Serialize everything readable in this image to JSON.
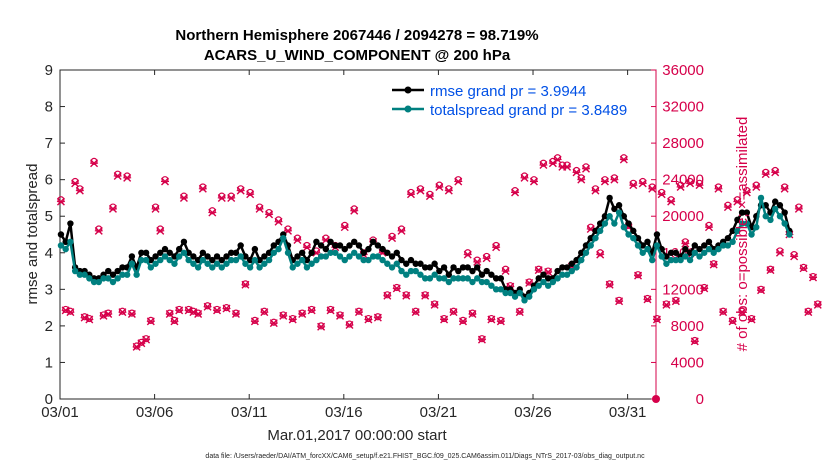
{
  "figure": {
    "title_line1": "Northern Hemisphere 2067446 / 2094278 = 98.719%",
    "title_line2": "ACARS_U_WIND_COMPONENT @ 200 hPa",
    "footnote": "data file: /Users/raeder/DAI/ATM_forcXX/CAM6_setup/f.e21.FHIST_BGC.f09_025.CAM6assim.011/Diags_NTrS_2017-03/obs_diag_output.nc"
  },
  "colors": {
    "rmse": "#000000",
    "spread": "#008080",
    "obs": "#d6004a",
    "legend_text": "#0050e6"
  },
  "chart_data": {
    "type": "line",
    "title": "Northern Hemisphere 2067446 / 2094278 = 98.719% — ACARS_U_WIND_COMPONENT @ 200 hPa",
    "xlabel": "Mar.01,2017 00:00:00 start",
    "ylabel": "rmse and totalspread",
    "y2label": "# of obs: o=possible; ×=assimilated",
    "xlim": [
      0,
      31.5
    ],
    "ylim": [
      0,
      9
    ],
    "y2lim": [
      0,
      36000
    ],
    "xticks": [
      0,
      5,
      10,
      15,
      20,
      25,
      30
    ],
    "xticklabels": [
      "03/01",
      "03/06",
      "03/11",
      "03/16",
      "03/21",
      "03/26",
      "03/31"
    ],
    "yticks": [
      0,
      1,
      2,
      3,
      4,
      5,
      6,
      7,
      8,
      9
    ],
    "y2ticks": [
      0,
      4000,
      8000,
      12000,
      16000,
      20000,
      24000,
      28000,
      32000,
      36000
    ],
    "legend": [
      {
        "name": "rmse grand pr = 3.9944",
        "key": "rmse"
      },
      {
        "name": "totalspread grand pr = 3.8489",
        "key": "spread"
      }
    ],
    "legend_position": "top-right",
    "time_step_days": 0.25,
    "series": [
      {
        "name": "rmse",
        "key": "rmse",
        "values": [
          4.5,
          4.3,
          4.8,
          3.6,
          3.5,
          3.5,
          3.4,
          3.3,
          3.3,
          3.4,
          3.5,
          3.4,
          3.5,
          3.6,
          3.6,
          3.9,
          3.6,
          4.0,
          4.0,
          3.8,
          3.9,
          4.0,
          4.1,
          4.0,
          3.9,
          4.1,
          4.3,
          4.0,
          3.9,
          3.8,
          4.0,
          3.9,
          3.8,
          3.9,
          3.8,
          3.9,
          4.0,
          4.0,
          4.2,
          3.9,
          3.8,
          4.1,
          3.8,
          3.9,
          4.0,
          4.2,
          4.3,
          4.5,
          4.2,
          3.8,
          3.9,
          4.0,
          3.8,
          4.0,
          4.3,
          4.2,
          4.1,
          4.3,
          4.2,
          4.2,
          4.1,
          4.2,
          4.3,
          4.2,
          4.0,
          4.1,
          4.3,
          4.2,
          4.1,
          4.0,
          3.9,
          4.0,
          3.8,
          3.7,
          3.8,
          3.7,
          3.7,
          3.6,
          3.6,
          3.7,
          3.5,
          3.6,
          3.4,
          3.6,
          3.5,
          3.6,
          3.6,
          3.5,
          3.6,
          3.4,
          3.5,
          3.4,
          3.3,
          3.3,
          3.0,
          3.0,
          2.9,
          3.0,
          2.8,
          2.9,
          3.1,
          3.3,
          3.4,
          3.3,
          3.3,
          3.5,
          3.6,
          3.6,
          3.7,
          3.8,
          4.0,
          4.2,
          4.4,
          4.6,
          4.8,
          5.0,
          5.5,
          5.2,
          5.3,
          5.0,
          4.8,
          4.6,
          4.4,
          4.2,
          4.3,
          4.0,
          4.5,
          4.1,
          3.9,
          4.0,
          4.0,
          3.9,
          4.1,
          4.0,
          4.2,
          4.1,
          4.2,
          4.3,
          4.1,
          4.2,
          4.3,
          4.4,
          4.6,
          4.9,
          5.1,
          5.1,
          4.7,
          5.0,
          5.3,
          5.3,
          5.1,
          5.4,
          5.3,
          5.1,
          4.6
        ]
      },
      {
        "name": "totalspread",
        "key": "spread",
        "values": [
          4.2,
          4.1,
          4.3,
          3.5,
          3.4,
          3.4,
          3.3,
          3.2,
          3.2,
          3.3,
          3.3,
          3.2,
          3.3,
          3.4,
          3.4,
          3.7,
          3.4,
          3.8,
          3.8,
          3.6,
          3.7,
          3.8,
          3.9,
          3.8,
          3.7,
          3.9,
          4.0,
          3.8,
          3.7,
          3.6,
          3.8,
          3.7,
          3.6,
          3.7,
          3.6,
          3.7,
          3.8,
          3.8,
          3.9,
          3.7,
          3.6,
          3.8,
          3.6,
          3.7,
          3.8,
          4.0,
          4.1,
          4.4,
          4.0,
          3.6,
          3.7,
          3.8,
          3.6,
          3.7,
          3.8,
          3.9,
          3.9,
          4.0,
          4.0,
          3.9,
          3.8,
          3.9,
          4.0,
          3.9,
          3.8,
          3.8,
          3.9,
          3.9,
          3.8,
          3.7,
          3.6,
          3.7,
          3.5,
          3.4,
          3.5,
          3.5,
          3.4,
          3.3,
          3.3,
          3.4,
          3.3,
          3.3,
          3.2,
          3.3,
          3.3,
          3.3,
          3.3,
          3.2,
          3.3,
          3.2,
          3.2,
          3.1,
          3.0,
          3.0,
          2.9,
          2.9,
          2.8,
          2.9,
          2.7,
          2.8,
          3.0,
          3.1,
          3.2,
          3.1,
          3.2,
          3.3,
          3.4,
          3.4,
          3.5,
          3.6,
          3.8,
          4.0,
          4.2,
          4.4,
          4.6,
          4.8,
          5.0,
          4.8,
          5.1,
          4.7,
          4.5,
          4.4,
          4.2,
          4.0,
          4.1,
          3.8,
          4.2,
          3.9,
          3.7,
          3.8,
          3.8,
          3.8,
          3.9,
          3.8,
          4.0,
          3.9,
          4.0,
          4.1,
          4.0,
          4.1,
          4.2,
          4.2,
          4.3,
          4.6,
          4.8,
          4.8,
          4.5,
          4.7,
          5.5,
          5.0,
          4.9,
          5.2,
          5.0,
          4.8,
          4.5
        ]
      },
      {
        "name": "# of obs possible",
        "key": "obs",
        "axis": "right",
        "values": [
          21800,
          9800,
          9600,
          23800,
          23000,
          9000,
          8800,
          26000,
          18600,
          9200,
          9400,
          21000,
          24600,
          9600,
          24400,
          9400,
          5800,
          6200,
          6600,
          8600,
          21000,
          18600,
          24000,
          9400,
          8600,
          9800,
          22200,
          9800,
          9600,
          9400,
          23200,
          10200,
          20600,
          9800,
          22200,
          10000,
          22200,
          9400,
          23000,
          12600,
          22600,
          8600,
          21000,
          9600,
          20400,
          8400,
          19600,
          9200,
          18600,
          8800,
          17600,
          9400,
          16800,
          9800,
          16200,
          8000,
          17600,
          9800,
          16800,
          9200,
          19000,
          8200,
          20800,
          9600,
          16000,
          8800,
          17400,
          9000,
          16200,
          11400,
          17800,
          12200,
          18600,
          11400,
          22600,
          9600,
          23000,
          11400,
          22400,
          10400,
          23400,
          8800,
          23000,
          9600,
          24000,
          8600,
          16000,
          9400,
          15200,
          6600,
          15600,
          8800,
          16800,
          8600,
          14200,
          12400,
          22800,
          9600,
          24400,
          12800,
          24000,
          14200,
          25800,
          14000,
          26000,
          26400,
          25600,
          25600,
          14600,
          25000,
          24200,
          25400,
          18800,
          23000,
          16000,
          24000,
          12600,
          24200,
          10800,
          26400,
          19000,
          23600,
          13600,
          23800,
          11000,
          23200,
          8800,
          22600,
          10400,
          21800,
          10800,
          23400,
          17200,
          23800,
          6400,
          23600,
          12200,
          19000,
          14800,
          23200,
          9600,
          21200,
          8600,
          21800,
          9600,
          22800,
          8800,
          23400,
          12000,
          24800,
          14200,
          25000,
          16200,
          23200,
          18200,
          15800,
          21000,
          14400,
          9600,
          13400,
          10400
        ]
      },
      {
        "name": "# of obs assimilated",
        "key": "obs_assim",
        "axis": "right",
        "values": [
          21600,
          9700,
          9500,
          23600,
          22800,
          8900,
          8700,
          25800,
          18400,
          9100,
          9300,
          20800,
          24400,
          9500,
          24200,
          9300,
          5700,
          6100,
          6500,
          8500,
          20800,
          18400,
          23800,
          9300,
          8500,
          9700,
          22000,
          9700,
          9500,
          9300,
          23000,
          10100,
          20400,
          9700,
          22000,
          9900,
          22000,
          9300,
          22800,
          12500,
          22400,
          8500,
          20800,
          9500,
          20200,
          8300,
          19400,
          9100,
          18400,
          8700,
          17400,
          9300,
          16600,
          9700,
          16000,
          7900,
          17400,
          9700,
          16600,
          9100,
          18800,
          8100,
          20600,
          9500,
          15800,
          8700,
          17200,
          8900,
          16000,
          11300,
          17600,
          12100,
          18400,
          11300,
          22400,
          9500,
          22800,
          11300,
          22200,
          10300,
          23200,
          8700,
          22800,
          9500,
          23800,
          8500,
          15800,
          9300,
          15000,
          6500,
          15400,
          8700,
          16600,
          8500,
          14000,
          12300,
          22600,
          9500,
          24200,
          12700,
          23800,
          14100,
          25600,
          13900,
          25800,
          26200,
          25400,
          25400,
          14500,
          24800,
          24000,
          25200,
          18600,
          22800,
          15800,
          23800,
          12500,
          24000,
          10700,
          26200,
          18800,
          23400,
          13500,
          23600,
          10900,
          23000,
          8700,
          22400,
          10300,
          21600,
          10700,
          23200,
          17000,
          23600,
          6300,
          23400,
          12100,
          18800,
          14700,
          23000,
          9500,
          21000,
          8500,
          21600,
          9500,
          22600,
          8700,
          23200,
          11900,
          24600,
          14100,
          24800,
          16000,
          23000,
          18000,
          15600,
          20800,
          14300,
          9500,
          13300,
          10300
        ]
      }
    ]
  }
}
